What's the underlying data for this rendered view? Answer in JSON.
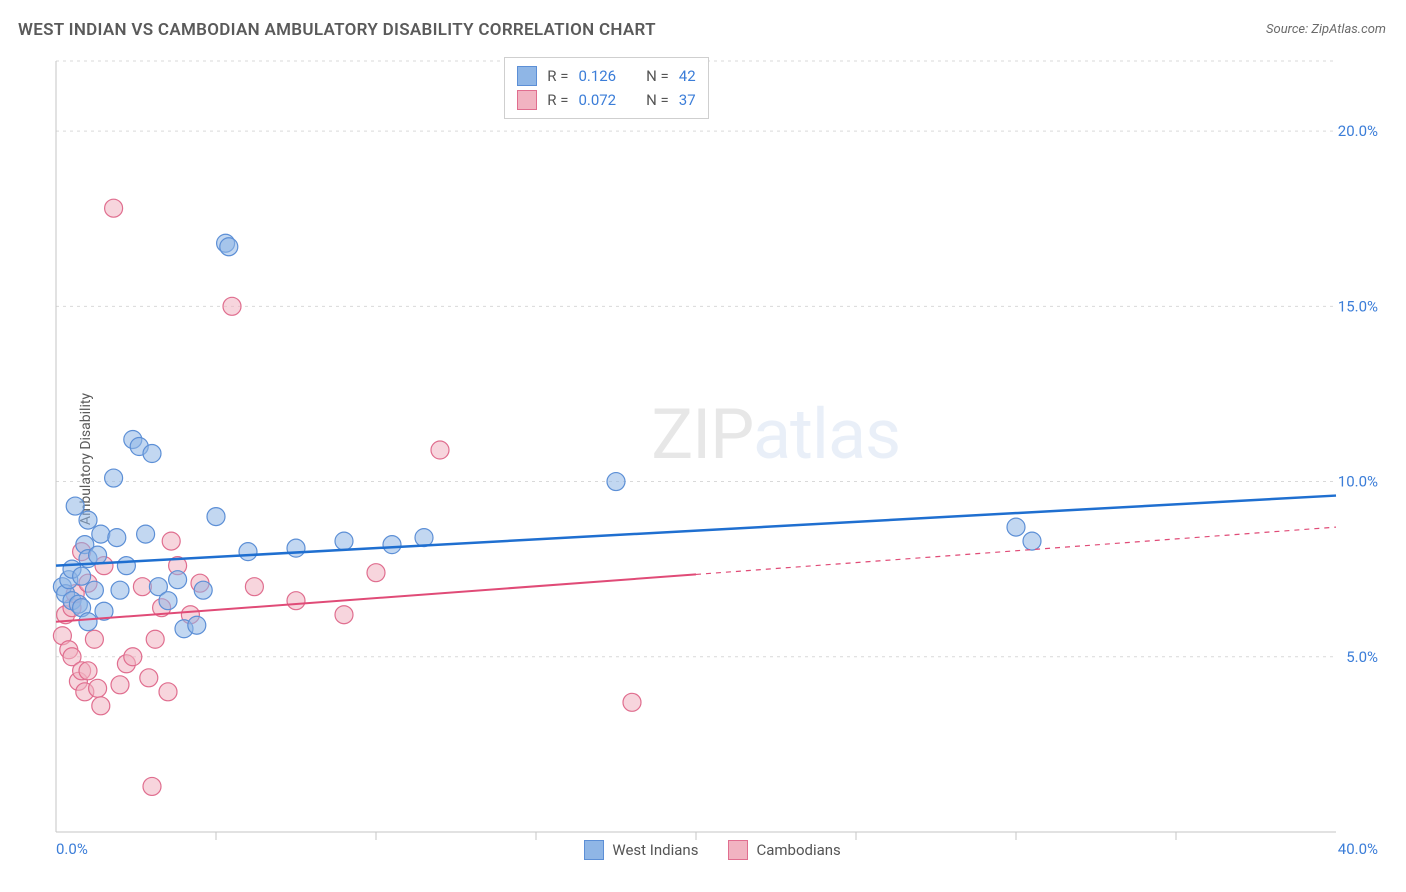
{
  "title": "WEST INDIAN VS CAMBODIAN AMBULATORY DISABILITY CORRELATION CHART",
  "source": "Source: ZipAtlas.com",
  "y_axis_label": "Ambulatory Disability",
  "watermark_prefix": "ZIP",
  "watermark_suffix": "atlas",
  "chart": {
    "type": "scatter",
    "background": "#ffffff",
    "grid_color": "#d9d9d9",
    "axis_color": "#c6c6c6",
    "tick_label_color": "#3b7dd8",
    "xlim": [
      0,
      40
    ],
    "ylim": [
      0,
      22
    ],
    "y_ticks": [
      {
        "v": 5,
        "label": "5.0%"
      },
      {
        "v": 10,
        "label": "10.0%"
      },
      {
        "v": 15,
        "label": "15.0%"
      },
      {
        "v": 20,
        "label": "20.0%"
      }
    ],
    "x_ticks_minor": [
      5,
      10,
      15,
      20,
      25,
      30,
      35
    ],
    "x_labels": [
      {
        "v": 0,
        "label": "0.0%"
      },
      {
        "v": 40,
        "label": "40.0%"
      }
    ],
    "marker_radius": 9,
    "marker_opacity": 0.55,
    "series": [
      {
        "name": "West Indians",
        "color_fill": "#8fb6e6",
        "color_stroke": "#5c8fd6",
        "R": "0.126",
        "N": "42",
        "regression": {
          "x1": 0,
          "y1": 7.6,
          "x2": 40,
          "y2": 9.6,
          "solid_extent": 40,
          "stroke": "#1f6fd0",
          "width": 2.5
        },
        "points": [
          [
            0.2,
            7.0
          ],
          [
            0.3,
            6.8
          ],
          [
            0.4,
            7.2
          ],
          [
            0.5,
            6.6
          ],
          [
            0.5,
            7.5
          ],
          [
            0.6,
            9.3
          ],
          [
            0.7,
            6.5
          ],
          [
            0.8,
            7.3
          ],
          [
            0.8,
            6.4
          ],
          [
            0.9,
            8.2
          ],
          [
            1.0,
            6.0
          ],
          [
            1.0,
            7.8
          ],
          [
            1.0,
            8.9
          ],
          [
            1.2,
            6.9
          ],
          [
            1.3,
            7.9
          ],
          [
            1.4,
            8.5
          ],
          [
            1.5,
            6.3
          ],
          [
            1.8,
            10.1
          ],
          [
            1.9,
            8.4
          ],
          [
            2.0,
            6.9
          ],
          [
            2.2,
            7.6
          ],
          [
            2.4,
            11.2
          ],
          [
            2.6,
            11.0
          ],
          [
            2.8,
            8.5
          ],
          [
            3.0,
            10.8
          ],
          [
            3.2,
            7.0
          ],
          [
            3.5,
            6.6
          ],
          [
            3.8,
            7.2
          ],
          [
            4.0,
            5.8
          ],
          [
            4.4,
            5.9
          ],
          [
            4.6,
            6.9
          ],
          [
            5.0,
            9.0
          ],
          [
            5.3,
            16.8
          ],
          [
            5.4,
            16.7
          ],
          [
            6.0,
            8.0
          ],
          [
            7.5,
            8.1
          ],
          [
            9.0,
            8.3
          ],
          [
            10.5,
            8.2
          ],
          [
            11.5,
            8.4
          ],
          [
            17.5,
            10.0
          ],
          [
            30.0,
            8.7
          ],
          [
            30.5,
            8.3
          ]
        ]
      },
      {
        "name": "Cambodians",
        "color_fill": "#f1b3c1",
        "color_stroke": "#e06e8f",
        "R": "0.072",
        "N": "37",
        "regression": {
          "x1": 0,
          "y1": 6.0,
          "x2": 40,
          "y2": 8.7,
          "solid_extent": 20,
          "stroke": "#e04b77",
          "width": 2
        },
        "points": [
          [
            0.2,
            5.6
          ],
          [
            0.3,
            6.2
          ],
          [
            0.4,
            5.2
          ],
          [
            0.5,
            6.4
          ],
          [
            0.5,
            5.0
          ],
          [
            0.6,
            6.8
          ],
          [
            0.7,
            4.3
          ],
          [
            0.8,
            4.6
          ],
          [
            0.8,
            8.0
          ],
          [
            0.9,
            4.0
          ],
          [
            1.0,
            4.6
          ],
          [
            1.0,
            7.1
          ],
          [
            1.2,
            5.5
          ],
          [
            1.3,
            4.1
          ],
          [
            1.4,
            3.6
          ],
          [
            1.5,
            7.6
          ],
          [
            1.8,
            17.8
          ],
          [
            2.0,
            4.2
          ],
          [
            2.2,
            4.8
          ],
          [
            2.4,
            5.0
          ],
          [
            2.7,
            7.0
          ],
          [
            2.9,
            4.4
          ],
          [
            3.0,
            1.3
          ],
          [
            3.1,
            5.5
          ],
          [
            3.3,
            6.4
          ],
          [
            3.5,
            4.0
          ],
          [
            3.6,
            8.3
          ],
          [
            3.8,
            7.6
          ],
          [
            4.2,
            6.2
          ],
          [
            4.5,
            7.1
          ],
          [
            5.5,
            15.0
          ],
          [
            6.2,
            7.0
          ],
          [
            7.5,
            6.6
          ],
          [
            9.0,
            6.2
          ],
          [
            10.0,
            7.4
          ],
          [
            12.0,
            10.9
          ],
          [
            18.0,
            3.7
          ]
        ]
      }
    ]
  },
  "stats_box": {
    "label_R": "R",
    "label_N": "N",
    "eq": "="
  },
  "legend": {
    "items": [
      "West Indians",
      "Cambodians"
    ]
  }
}
